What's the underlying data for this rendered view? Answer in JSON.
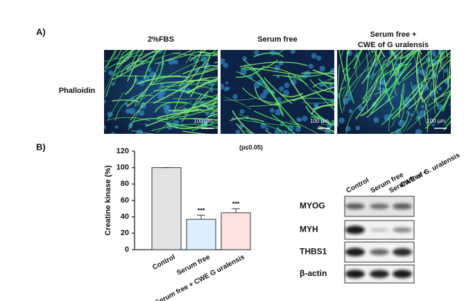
{
  "panel_a": {
    "label": "A)",
    "columns": [
      "2%FBS",
      "Serum  free",
      [
        "Serum free +",
        "CWE of G uralensis"
      ]
    ],
    "row_label": "Phalloidin",
    "scale_bar": "100 µm"
  },
  "panel_b": {
    "label": "B)"
  },
  "chart_data": {
    "type": "bar",
    "ylabel": "Creatine kinase (%)",
    "annotation": "(p≤0.05)",
    "categories": [
      "Control",
      "Serum free",
      "Serum free + CWE G uralensis"
    ],
    "values": [
      100,
      37,
      45
    ],
    "errors": [
      0,
      5,
      5
    ],
    "value_annotations": [
      null,
      "***",
      "***"
    ],
    "colors": [
      "#e3e3e3",
      "#ddeeff",
      "#ffe2e2"
    ],
    "ylim": [
      0,
      120
    ],
    "yticks": [
      0,
      20,
      40,
      60,
      80,
      100,
      120
    ]
  },
  "western_blot": {
    "columns": [
      "Control",
      "Serum free",
      [
        "Serum free +",
        "CWE of G. uralensis"
      ]
    ],
    "rows": [
      "MYOG",
      "MYH",
      "THBS1",
      "β-actin"
    ]
  }
}
